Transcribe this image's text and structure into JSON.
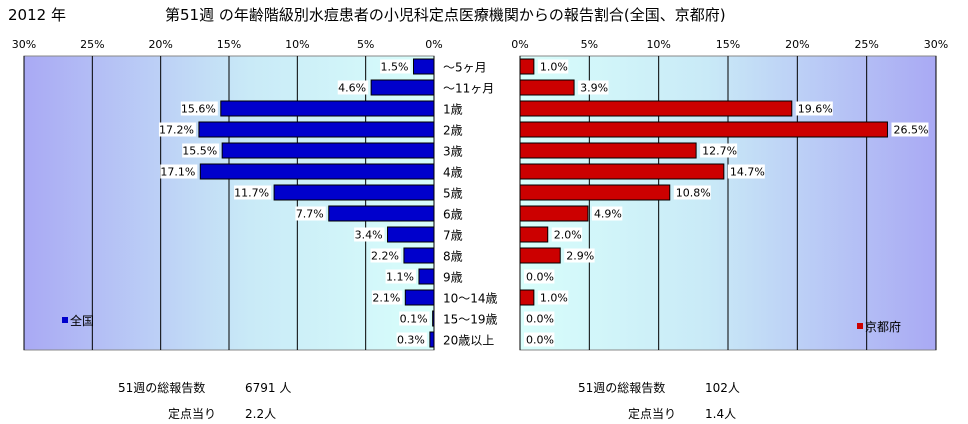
{
  "header": {
    "year": "2012 年",
    "title": "第51週 の年齢階級別水痘患者の小児科定点医療機関からの報告割合(全国、京都府)"
  },
  "chart_data": [
    {
      "type": "bar",
      "orientation": "horizontal",
      "direction": "right-to-left",
      "legend": "全国",
      "legend_position": "bottom-left",
      "categories": [
        "～5ヶ月",
        "～11ヶ月",
        "1歳",
        "2歳",
        "3歳",
        "4歳",
        "5歳",
        "6歳",
        "7歳",
        "8歳",
        "9歳",
        "10～14歳",
        "15～19歳",
        "20歳以上"
      ],
      "values": [
        1.5,
        4.6,
        15.6,
        17.2,
        15.5,
        17.1,
        11.7,
        7.7,
        3.4,
        2.2,
        1.1,
        2.1,
        0.1,
        0.3
      ],
      "value_labels": [
        "1.5%",
        "4.6%",
        "15.6%",
        "17.2%",
        "15.5%",
        "17.1%",
        "11.7%",
        "7.7%",
        "3.4%",
        "2.2%",
        "1.1%",
        "2.1%",
        "0.1%",
        "0.3%"
      ],
      "xlim": [
        0,
        30
      ],
      "ticks": [
        "30%",
        "25%",
        "20%",
        "15%",
        "10%",
        "5%",
        "0%"
      ],
      "grid": true,
      "color": "#0000CC"
    },
    {
      "type": "bar",
      "orientation": "horizontal",
      "direction": "left-to-right",
      "legend": "京都府",
      "legend_position": "bottom-right",
      "categories": [
        "～5ヶ月",
        "～11ヶ月",
        "1歳",
        "2歳",
        "3歳",
        "4歳",
        "5歳",
        "6歳",
        "7歳",
        "8歳",
        "9歳",
        "10～14歳",
        "15～19歳",
        "20歳以上"
      ],
      "values": [
        1.0,
        3.9,
        19.6,
        26.5,
        12.7,
        14.7,
        10.8,
        4.9,
        2.0,
        2.9,
        0.0,
        1.0,
        0.0,
        0.0
      ],
      "value_labels": [
        "1.0%",
        "3.9%",
        "19.6%",
        "26.5%",
        "12.7%",
        "14.7%",
        "10.8%",
        "4.9%",
        "2.0%",
        "2.9%",
        "0.0%",
        "1.0%",
        "0.0%",
        "0.0%"
      ],
      "xlim": [
        0,
        30
      ],
      "ticks": [
        "0%",
        "5%",
        "10%",
        "15%",
        "20%",
        "25%",
        "30%"
      ],
      "grid": true,
      "color": "#CC0000"
    }
  ],
  "footer": {
    "national_total_label": "51週の総報告数",
    "national_total_value": "6791 人",
    "national_per_label": "定点当り",
    "national_per_value": "2.2人",
    "kyoto_total_label": "51週の総報告数",
    "kyoto_total_value": "102人",
    "kyoto_per_label": "定点当り",
    "kyoto_per_value": "1.4人"
  }
}
